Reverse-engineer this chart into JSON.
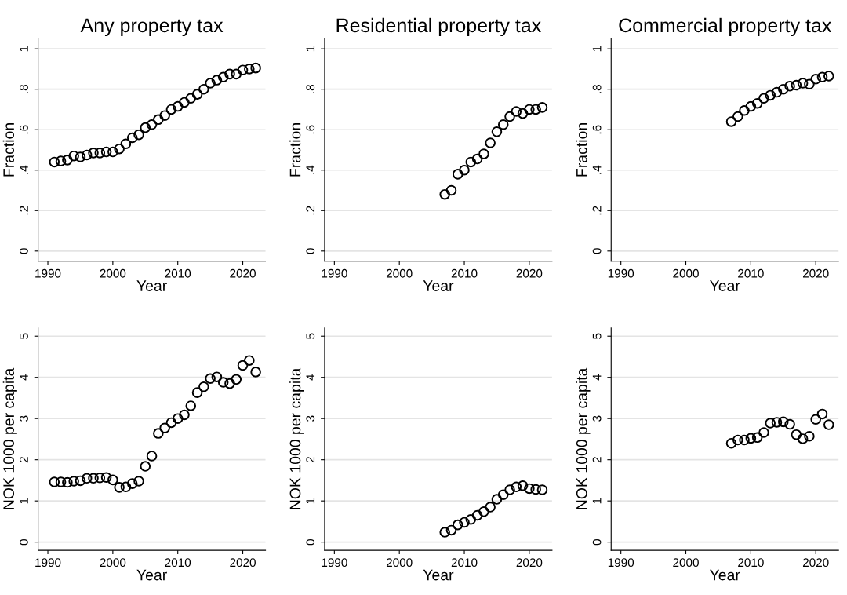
{
  "chart_data": [
    {
      "type": "scatter",
      "title": "Any property tax",
      "xlabel": "Year",
      "ylabel": "Fraction",
      "marker": "circle",
      "grid": "y",
      "xlim": [
        1988.5,
        2023.5
      ],
      "xticks": [
        1990,
        2000,
        2010,
        2020
      ],
      "ylim": [
        -0.05,
        1.05
      ],
      "yticks": [
        {
          "value": 0,
          "label": "0"
        },
        {
          "value": 0.2,
          "label": ".2"
        },
        {
          "value": 0.4,
          "label": ".4"
        },
        {
          "value": 0.6,
          "label": ".6"
        },
        {
          "value": 0.8,
          "label": ".8"
        },
        {
          "value": 1,
          "label": "1"
        }
      ],
      "series": [
        {
          "color": "#000000",
          "x": [
            1991,
            1992,
            1993,
            1994,
            1995,
            1996,
            1997,
            1998,
            1999,
            2000,
            2001,
            2002,
            2003,
            2004,
            2005,
            2006,
            2007,
            2008,
            2009,
            2010,
            2011,
            2012,
            2013,
            2014,
            2015,
            2016,
            2017,
            2018,
            2019,
            2020,
            2021,
            2022
          ],
          "values": [
            0.44,
            0.445,
            0.45,
            0.47,
            0.465,
            0.475,
            0.485,
            0.485,
            0.49,
            0.49,
            0.505,
            0.53,
            0.56,
            0.575,
            0.61,
            0.625,
            0.65,
            0.67,
            0.7,
            0.715,
            0.735,
            0.755,
            0.775,
            0.8,
            0.83,
            0.845,
            0.86,
            0.875,
            0.875,
            0.895,
            0.9,
            0.905
          ]
        }
      ]
    },
    {
      "type": "scatter",
      "title": "Residential property tax",
      "xlabel": "Year",
      "ylabel": "Fraction",
      "marker": "circle",
      "grid": "y",
      "xlim": [
        1988.5,
        2023.5
      ],
      "xticks": [
        1990,
        2000,
        2010,
        2020
      ],
      "ylim": [
        -0.05,
        1.05
      ],
      "yticks": [
        {
          "value": 0,
          "label": "0"
        },
        {
          "value": 0.2,
          "label": ".2"
        },
        {
          "value": 0.4,
          "label": ".4"
        },
        {
          "value": 0.6,
          "label": ".6"
        },
        {
          "value": 0.8,
          "label": ".8"
        },
        {
          "value": 1,
          "label": "1"
        }
      ],
      "series": [
        {
          "color": "#000000",
          "x": [
            2007,
            2008,
            2009,
            2010,
            2011,
            2012,
            2013,
            2014,
            2015,
            2016,
            2017,
            2018,
            2019,
            2020,
            2021,
            2022
          ],
          "values": [
            0.28,
            0.3,
            0.38,
            0.4,
            0.44,
            0.455,
            0.48,
            0.535,
            0.59,
            0.625,
            0.665,
            0.69,
            0.68,
            0.7,
            0.7,
            0.71
          ]
        }
      ]
    },
    {
      "type": "scatter",
      "title": "Commercial property tax",
      "xlabel": "Year",
      "ylabel": "Fraction",
      "marker": "circle",
      "grid": "y",
      "xlim": [
        1988.5,
        2023.5
      ],
      "xticks": [
        1990,
        2000,
        2010,
        2020
      ],
      "ylim": [
        -0.05,
        1.05
      ],
      "yticks": [
        {
          "value": 0,
          "label": "0"
        },
        {
          "value": 0.2,
          "label": ".2"
        },
        {
          "value": 0.4,
          "label": ".4"
        },
        {
          "value": 0.6,
          "label": ".6"
        },
        {
          "value": 0.8,
          "label": ".8"
        },
        {
          "value": 1,
          "label": "1"
        }
      ],
      "series": [
        {
          "color": "#000000",
          "x": [
            2007,
            2008,
            2009,
            2010,
            2011,
            2012,
            2013,
            2014,
            2015,
            2016,
            2017,
            2018,
            2019,
            2020,
            2021,
            2022
          ],
          "values": [
            0.64,
            0.665,
            0.695,
            0.715,
            0.73,
            0.755,
            0.77,
            0.785,
            0.8,
            0.815,
            0.82,
            0.83,
            0.825,
            0.85,
            0.86,
            0.865
          ]
        }
      ]
    },
    {
      "type": "scatter",
      "xlabel": "Year",
      "ylabel": "NOK 1000 per capita",
      "marker": "circle",
      "grid": "y",
      "xlim": [
        1988.5,
        2023.5
      ],
      "xticks": [
        1990,
        2000,
        2010,
        2020
      ],
      "ylim": [
        -0.2,
        5.2
      ],
      "yticks": [
        0,
        1,
        2,
        3,
        4,
        5
      ],
      "series": [
        {
          "color": "#000000",
          "x": [
            1991,
            1992,
            1993,
            1994,
            1995,
            1996,
            1997,
            1998,
            1999,
            2000,
            2001,
            2002,
            2003,
            2004,
            2005,
            2006,
            2007,
            2008,
            2009,
            2010,
            2011,
            2012,
            2013,
            2014,
            2015,
            2016,
            2017,
            2018,
            2019,
            2020,
            2021,
            2022
          ],
          "values": [
            1.46,
            1.46,
            1.45,
            1.48,
            1.49,
            1.55,
            1.55,
            1.56,
            1.57,
            1.51,
            1.33,
            1.34,
            1.42,
            1.48,
            1.84,
            2.09,
            2.64,
            2.77,
            2.9,
            3.0,
            3.09,
            3.31,
            3.63,
            3.77,
            3.97,
            4.01,
            3.88,
            3.85,
            3.95,
            4.29,
            4.41,
            4.13
          ]
        }
      ]
    },
    {
      "type": "scatter",
      "xlabel": "Year",
      "ylabel": "NOK 1000 per capita",
      "marker": "circle",
      "grid": "y",
      "xlim": [
        1988.5,
        2023.5
      ],
      "xticks": [
        1990,
        2000,
        2010,
        2020
      ],
      "ylim": [
        -0.2,
        5.2
      ],
      "yticks": [
        0,
        1,
        2,
        3,
        4,
        5
      ],
      "series": [
        {
          "color": "#000000",
          "x": [
            2007,
            2008,
            2009,
            2010,
            2011,
            2012,
            2013,
            2014,
            2015,
            2016,
            2017,
            2018,
            2019,
            2020,
            2021,
            2022
          ],
          "values": [
            0.24,
            0.29,
            0.42,
            0.48,
            0.55,
            0.65,
            0.74,
            0.85,
            1.04,
            1.15,
            1.27,
            1.34,
            1.37,
            1.3,
            1.28,
            1.27
          ]
        }
      ]
    },
    {
      "type": "scatter",
      "xlabel": "Year",
      "ylabel": "NOK 1000 per capita",
      "marker": "circle",
      "grid": "y",
      "xlim": [
        1988.5,
        2023.5
      ],
      "xticks": [
        1990,
        2000,
        2010,
        2020
      ],
      "ylim": [
        -0.2,
        5.2
      ],
      "yticks": [
        0,
        1,
        2,
        3,
        4,
        5
      ],
      "series": [
        {
          "color": "#000000",
          "x": [
            2007,
            2008,
            2009,
            2010,
            2011,
            2012,
            2013,
            2014,
            2015,
            2016,
            2017,
            2018,
            2019,
            2020,
            2021,
            2022
          ],
          "values": [
            2.4,
            2.48,
            2.48,
            2.52,
            2.54,
            2.66,
            2.89,
            2.91,
            2.92,
            2.86,
            2.61,
            2.51,
            2.57,
            2.98,
            3.11,
            2.85
          ]
        }
      ]
    }
  ]
}
